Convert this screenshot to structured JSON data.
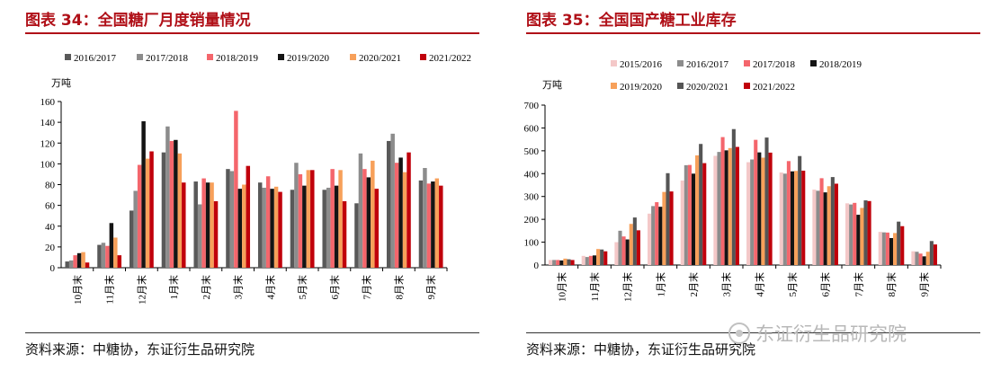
{
  "chart_data": [
    {
      "type": "bar",
      "title": "图表 34：全国糖厂月度销量情况",
      "ylabel": "万吨",
      "xlabel": "",
      "ylim": [
        0,
        160
      ],
      "yticks": [
        0,
        20,
        40,
        60,
        80,
        100,
        120,
        140,
        160
      ],
      "legend_position": "top",
      "categories": [
        "10月末",
        "11月末",
        "12月末",
        "1月末",
        "2月末",
        "3月末",
        "4月末",
        "5月末",
        "6月末",
        "7月末",
        "8月末",
        "9月末"
      ],
      "series": [
        {
          "name": "2016/2017",
          "color": "#595959",
          "values": [
            6,
            22,
            55,
            111,
            83,
            95,
            82,
            75,
            75,
            62,
            122,
            84
          ]
        },
        {
          "name": "2017/2018",
          "color": "#8c8c8c",
          "values": [
            7,
            24,
            74,
            136,
            61,
            93,
            77,
            101,
            77,
            110,
            129,
            96
          ]
        },
        {
          "name": "2018/2019",
          "color": "#f4666c",
          "values": [
            12,
            21,
            99,
            122,
            86,
            151,
            88,
            90,
            95,
            95,
            101,
            81
          ]
        },
        {
          "name": "2019/2020",
          "color": "#141414",
          "values": [
            14,
            43,
            141,
            123,
            82,
            76,
            76,
            79,
            79,
            87,
            106,
            83
          ]
        },
        {
          "name": "2020/2021",
          "color": "#f7a05a",
          "values": [
            15,
            29,
            105,
            110,
            82,
            80,
            78,
            94,
            94,
            103,
            92,
            86
          ]
        },
        {
          "name": "2021/2022",
          "color": "#c0000b",
          "values": [
            5,
            12,
            112,
            82,
            64,
            98,
            73,
            94,
            64,
            76,
            111,
            79
          ]
        }
      ],
      "source": "资料来源：中糖协，东证衍生品研究院"
    },
    {
      "type": "bar",
      "title": "图表 35：全国国产糖工业库存",
      "ylabel": "万吨",
      "xlabel": "",
      "ylim": [
        0,
        700
      ],
      "yticks": [
        0,
        100,
        200,
        300,
        400,
        500,
        600,
        700
      ],
      "legend_position": "top",
      "categories": [
        "10月末",
        "11月末",
        "12月末",
        "1月末",
        "2月末",
        "3月末",
        "4月末",
        "5月末",
        "6月末",
        "7月末",
        "8月末",
        "9月末"
      ],
      "series": [
        {
          "name": "2015/2016",
          "color": "#f4c8c8",
          "values": [
            22,
            40,
            100,
            225,
            370,
            478,
            450,
            405,
            330,
            270,
            145,
            60
          ]
        },
        {
          "name": "2016/2017",
          "color": "#8c8c8c",
          "values": [
            22,
            35,
            150,
            258,
            437,
            495,
            462,
            400,
            325,
            265,
            143,
            58
          ]
        },
        {
          "name": "2017/2018",
          "color": "#f4666c",
          "values": [
            22,
            40,
            125,
            275,
            438,
            560,
            548,
            455,
            380,
            272,
            142,
            50
          ]
        },
        {
          "name": "2018/2019",
          "color": "#141414",
          "values": [
            20,
            42,
            112,
            255,
            400,
            502,
            493,
            410,
            318,
            220,
            118,
            38
          ]
        },
        {
          "name": "2019/2020",
          "color": "#f7a05a",
          "values": [
            28,
            70,
            180,
            320,
            480,
            512,
            470,
            412,
            345,
            250,
            140,
            58
          ]
        },
        {
          "name": "2020/2021",
          "color": "#555555",
          "values": [
            25,
            68,
            208,
            402,
            530,
            595,
            558,
            477,
            385,
            283,
            190,
            105
          ]
        },
        {
          "name": "2021/2022",
          "color": "#c0000b",
          "values": [
            22,
            60,
            152,
            322,
            446,
            517,
            492,
            413,
            356,
            280,
            170,
            90
          ]
        }
      ],
      "source": "资料来源：中糖协，东证衍生品研究院"
    }
  ],
  "watermark": {
    "text": "东证衍生品研究院",
    "icon": "wechat-logo-icon"
  }
}
